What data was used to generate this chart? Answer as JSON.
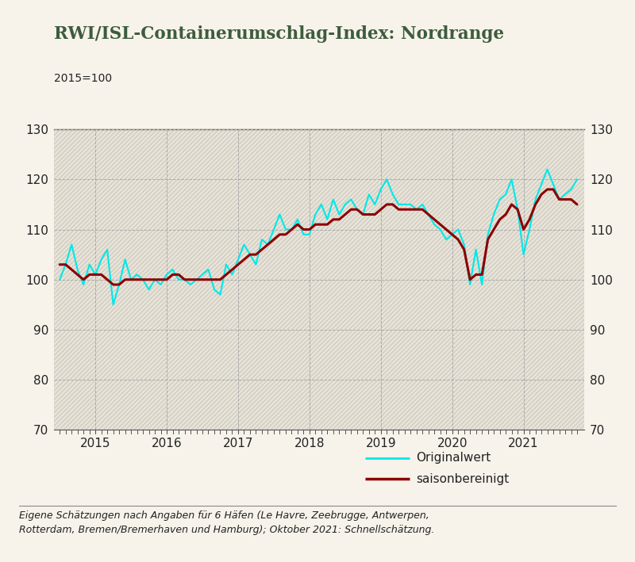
{
  "title": "RWI/ISL-Containerumschlag-Index: Nordrange",
  "subtitle": "2015=100",
  "footnote": "Eigene Schätzungen nach Angaben für 6 Häfen (Le Havre, Zeebrugge, Antwerpen,\nRotterdam, Bremen/Bremerhaven und Hamburg); Oktober 2021: Schnellschätzung.",
  "legend_original": "Originalwert",
  "legend_seasonal": "saisonbereinigt",
  "bg_color": "#f7f3ea",
  "plot_bg_color": "#e8e4da",
  "hatch_color": "#d0ccc0",
  "line_color_original": "#00e8e8",
  "line_color_seasonal": "#8b0000",
  "title_color": "#3d5c3d",
  "text_color": "#222222",
  "grid_color": "#aaaaaa",
  "spine_color": "#555555",
  "ylim": [
    70,
    130
  ],
  "yticks": [
    70,
    80,
    90,
    100,
    110,
    120,
    130
  ],
  "original_x": [
    2014.5,
    2014.583,
    2014.667,
    2014.75,
    2014.833,
    2014.917,
    2015.0,
    2015.083,
    2015.167,
    2015.25,
    2015.333,
    2015.417,
    2015.5,
    2015.583,
    2015.667,
    2015.75,
    2015.833,
    2015.917,
    2016.0,
    2016.083,
    2016.167,
    2016.25,
    2016.333,
    2016.417,
    2016.5,
    2016.583,
    2016.667,
    2016.75,
    2016.833,
    2016.917,
    2017.0,
    2017.083,
    2017.167,
    2017.25,
    2017.333,
    2017.417,
    2017.5,
    2017.583,
    2017.667,
    2017.75,
    2017.833,
    2017.917,
    2018.0,
    2018.083,
    2018.167,
    2018.25,
    2018.333,
    2018.417,
    2018.5,
    2018.583,
    2018.667,
    2018.75,
    2018.833,
    2018.917,
    2019.0,
    2019.083,
    2019.167,
    2019.25,
    2019.333,
    2019.417,
    2019.5,
    2019.583,
    2019.667,
    2019.75,
    2019.833,
    2019.917,
    2020.0,
    2020.083,
    2020.167,
    2020.25,
    2020.333,
    2020.417,
    2020.5,
    2020.583,
    2020.667,
    2020.75,
    2020.833,
    2020.917,
    2021.0,
    2021.083,
    2021.167,
    2021.25,
    2021.333,
    2021.417,
    2021.5,
    2021.583,
    2021.667,
    2021.75
  ],
  "original_y": [
    100,
    103,
    107,
    102,
    99,
    103,
    101,
    104,
    106,
    95,
    99,
    104,
    100,
    101,
    100,
    98,
    100,
    99,
    101,
    102,
    100,
    100,
    99,
    100,
    101,
    102,
    98,
    97,
    103,
    101,
    104,
    107,
    105,
    103,
    108,
    107,
    110,
    113,
    110,
    110,
    112,
    109,
    109,
    113,
    115,
    112,
    116,
    113,
    115,
    116,
    114,
    113,
    117,
    115,
    118,
    120,
    117,
    115,
    115,
    115,
    114,
    115,
    113,
    111,
    110,
    108,
    109,
    110,
    107,
    99,
    106,
    99,
    109,
    113,
    116,
    117,
    120,
    114,
    105,
    110,
    116,
    119,
    122,
    119,
    116,
    117,
    118,
    120
  ],
  "seasonal_y": [
    103,
    103,
    102,
    101,
    100,
    101,
    101,
    101,
    100,
    99,
    99,
    100,
    100,
    100,
    100,
    100,
    100,
    100,
    100,
    101,
    101,
    100,
    100,
    100,
    100,
    100,
    100,
    100,
    101,
    102,
    103,
    104,
    105,
    105,
    106,
    107,
    108,
    109,
    109,
    110,
    111,
    110,
    110,
    111,
    111,
    111,
    112,
    112,
    113,
    114,
    114,
    113,
    113,
    113,
    114,
    115,
    115,
    114,
    114,
    114,
    114,
    114,
    113,
    112,
    111,
    110,
    109,
    108,
    106,
    100,
    101,
    101,
    108,
    110,
    112,
    113,
    115,
    114,
    110,
    112,
    115,
    117,
    118,
    118,
    116,
    116,
    116,
    115
  ],
  "xlim_left": 2014.42,
  "xlim_right": 2021.85,
  "xtick_positions": [
    2015,
    2016,
    2017,
    2018,
    2019,
    2020,
    2021
  ],
  "xtick_labels": [
    "2015",
    "2016",
    "2017",
    "2018",
    "2019",
    "2020",
    "2021"
  ]
}
